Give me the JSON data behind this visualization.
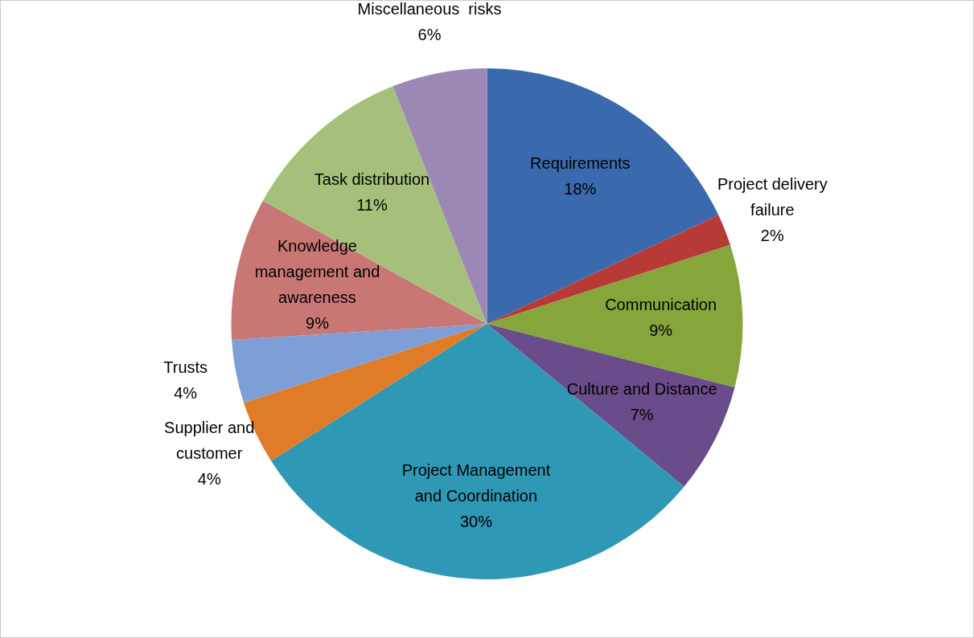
{
  "chart_data": {
    "type": "pie",
    "categories": [
      "Requirements",
      "Project delivery failure",
      "Communication",
      "Culture and Distance",
      "Project Management and Coordination",
      "Supplier and customer",
      "Trusts",
      "Knowledge management and awareness",
      "Task distribution",
      "Miscellaneous  risks"
    ],
    "values": [
      18,
      2,
      9,
      7,
      30,
      4,
      4,
      9,
      11,
      6
    ],
    "value_labels": [
      "18%",
      "2%",
      "9%",
      "7%",
      "30%",
      "4%",
      "4%",
      "9%",
      "11%",
      "6%"
    ],
    "colors": [
      "#3a6aad",
      "#b83a36",
      "#86a63c",
      "#6a4c8a",
      "#2e98b5",
      "#e07b27",
      "#7d9ed6",
      "#c97775",
      "#a6c07c",
      "#9b88b5"
    ],
    "legend": false
  }
}
